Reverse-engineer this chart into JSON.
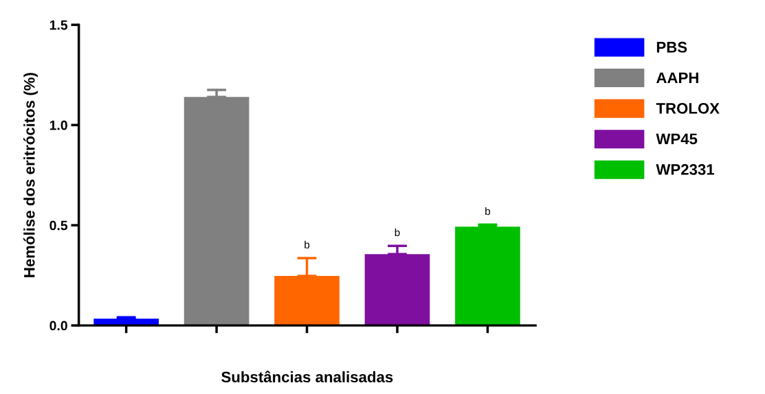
{
  "chart_data": {
    "type": "bar",
    "xlabel": "Substâncias analisadas",
    "ylabel": "Hemólise dos eritrócitos (%)",
    "categories": [
      null,
      null,
      null,
      null,
      null
    ],
    "series": [
      {
        "name": "PBS",
        "color": "#0000ff",
        "values": [
          0.034,
          null,
          null,
          null,
          null
        ],
        "errors": [
          [
            0.034,
            0.041
          ],
          null,
          null,
          null,
          null
        ],
        "value_labels": [
          null,
          null,
          null,
          null,
          null
        ]
      },
      {
        "name": "AAPH",
        "color": "#808080",
        "values": [
          null,
          1.14,
          null,
          null,
          null
        ],
        "errors": [
          null,
          [
            1.14,
            1.175
          ],
          null,
          null,
          null
        ],
        "value_labels": [
          null,
          null,
          null,
          null,
          null
        ]
      },
      {
        "name": "TROLOX",
        "color": "#ff6600",
        "values": [
          null,
          null,
          0.247,
          null,
          null
        ],
        "errors": [
          null,
          null,
          [
            0.247,
            0.336
          ],
          null,
          null
        ],
        "value_labels": [
          null,
          null,
          "b",
          null,
          null
        ]
      },
      {
        "name": "WP45",
        "color": "#7f0f9f",
        "values": [
          null,
          null,
          null,
          0.356,
          null
        ],
        "errors": [
          null,
          null,
          null,
          [
            0.356,
            0.397
          ],
          null
        ],
        "value_labels": [
          null,
          null,
          null,
          "b",
          null
        ]
      },
      {
        "name": "WP2331",
        "color": "#00bf00",
        "values": [
          null,
          null,
          null,
          null,
          0.493
        ],
        "errors": [
          null,
          null,
          null,
          null,
          [
            0.493,
            0.503
          ]
        ],
        "value_labels": [
          null,
          null,
          null,
          null,
          "b"
        ]
      }
    ],
    "ylim": [
      0,
      1.5
    ],
    "yticks": [
      {
        "value": 0,
        "label": "0.0"
      },
      {
        "value": 0.5,
        "label": "0.5"
      },
      {
        "value": 1,
        "label": "1.0"
      },
      {
        "value": 1.5,
        "label": "1.5"
      }
    ],
    "tick_labels": "y",
    "grid": false,
    "legend": "top right"
  }
}
